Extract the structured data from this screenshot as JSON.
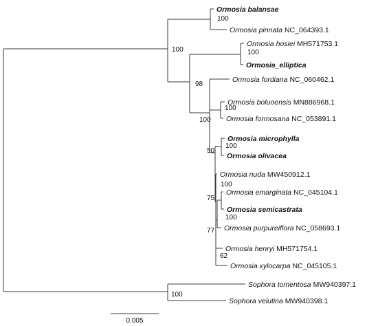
{
  "tips": [
    {
      "id": "balansae",
      "parts": [
        {
          "t": "Ormosia balansae",
          "i": true,
          "b": true
        }
      ]
    },
    {
      "id": "pinnata",
      "parts": [
        {
          "t": "Ormosia pinnata",
          "i": true
        },
        {
          "t": " NC_064393.1"
        }
      ]
    },
    {
      "id": "hosiei",
      "parts": [
        {
          "t": "Ormosia hosiei",
          "i": true
        },
        {
          "t": " MH571753.1"
        }
      ]
    },
    {
      "id": "elliptica",
      "parts": [
        {
          "t": "Ormosia_elliptica",
          "i": true,
          "b": true
        }
      ]
    },
    {
      "id": "fordiana",
      "parts": [
        {
          "t": "Ormosia fordiana",
          "i": true
        },
        {
          "t": " NC_060462.1"
        }
      ]
    },
    {
      "id": "boluoensis",
      "parts": [
        {
          "t": "Ormosia boluoensis",
          "i": true
        },
        {
          "t": " MN886968.1"
        }
      ]
    },
    {
      "id": "formosana",
      "parts": [
        {
          "t": "Ormosia formosana",
          "i": true
        },
        {
          "t": " NC_053891.1"
        }
      ]
    },
    {
      "id": "microphylla",
      "parts": [
        {
          "t": "Ormosia microphylla",
          "i": true,
          "b": true
        }
      ]
    },
    {
      "id": "olivacea",
      "parts": [
        {
          "t": "Ormosia olivacea",
          "i": true,
          "b": true
        }
      ]
    },
    {
      "id": "nuda",
      "parts": [
        {
          "t": "Ormosia nuda",
          "i": true
        },
        {
          "t": " MW450912.1"
        }
      ]
    },
    {
      "id": "emarginata",
      "parts": [
        {
          "t": "Ormosia emarginata",
          "i": true
        },
        {
          "t": " NC_045104.1"
        }
      ]
    },
    {
      "id": "semicastrata",
      "parts": [
        {
          "t": "Ormosia semicastrata",
          "i": true,
          "b": true
        }
      ]
    },
    {
      "id": "purpureiflora",
      "parts": [
        {
          "t": "Ormosia purpureiflora",
          "i": true
        },
        {
          "t": " NC_058693.1"
        }
      ]
    },
    {
      "id": "henryi",
      "parts": [
        {
          "t": "Ormosia henryi",
          "i": true
        },
        {
          "t": " MH571754.1"
        }
      ]
    },
    {
      "id": "xylocarpa",
      "parts": [
        {
          "t": "Ormosia xylocarpa",
          "i": true
        },
        {
          "t": " NC_045105.1"
        }
      ]
    },
    {
      "id": "tomentosa",
      "parts": [
        {
          "t": "Sophora tomentosa",
          "i": true
        },
        {
          "t": " MW940397.1"
        }
      ]
    },
    {
      "id": "velutina",
      "parts": [
        {
          "t": "Sophora velutina",
          "i": true
        },
        {
          "t": " MW940398.1"
        }
      ]
    }
  ],
  "bootstrap_values": [
    {
      "node": "balansae-pinnata",
      "value": "100"
    },
    {
      "node": "hosiei-elliptica",
      "value": "100"
    },
    {
      "node": "ormosia-root",
      "value": "100"
    },
    {
      "node": "sophora",
      "value": "100"
    },
    {
      "node": "clade-98",
      "value": "98"
    },
    {
      "node": "boluoensis-formosana",
      "value": "100"
    },
    {
      "node": "clade-100b",
      "value": "100"
    },
    {
      "node": "microphylla-olivacea",
      "value": "100"
    },
    {
      "node": "clade-50",
      "value": "50"
    },
    {
      "node": "nuda-node",
      "value": "100"
    },
    {
      "node": "emarginata-semicastrata",
      "value": "100"
    },
    {
      "node": "clade-75",
      "value": "75"
    },
    {
      "node": "clade-77",
      "value": "77"
    },
    {
      "node": "henryi-xylocarpa",
      "value": "62"
    }
  ],
  "scale_bar": {
    "label": "0.005"
  }
}
